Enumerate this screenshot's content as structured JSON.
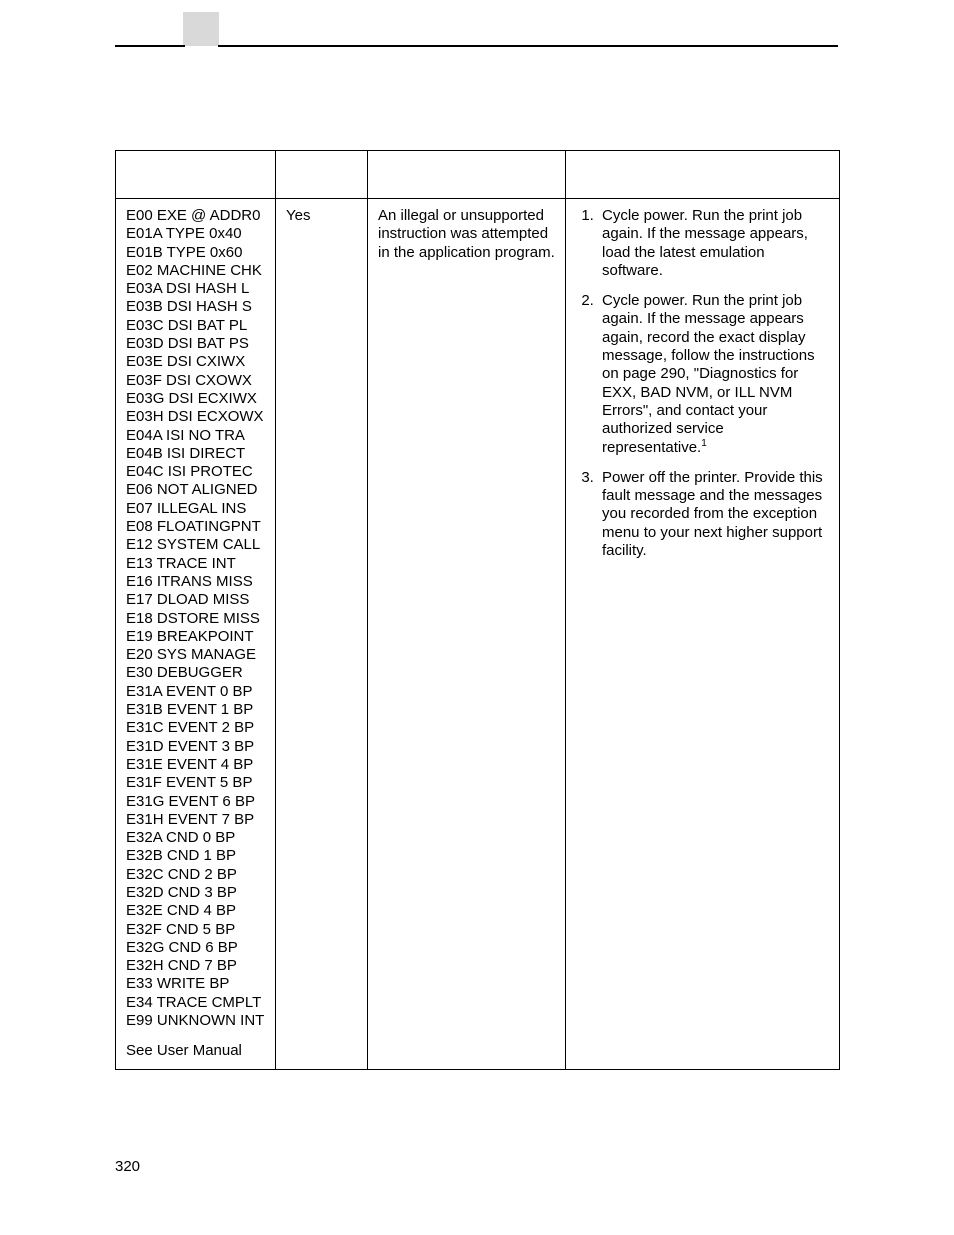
{
  "page_number": "320",
  "col2_value": "Yes",
  "col3_value": "An illegal or unsupported instruction was attempted in the application program.",
  "error_codes": [
    "E00 EXE @ ADDR0",
    "E01A TYPE 0x40",
    "E01B TYPE 0x60",
    "E02 MACHINE CHK",
    "E03A DSI HASH L",
    "E03B DSI HASH S",
    "E03C DSI BAT PL",
    "E03D DSI BAT PS",
    "E03E DSI CXIWX",
    "E03F DSI CXOWX",
    "E03G DSI ECXIWX",
    "E03H DSI ECXOWX",
    "E04A ISI NO TRA",
    "E04B ISI DIRECT",
    "E04C ISI PROTEC",
    "E06 NOT ALIGNED",
    "E07 ILLEGAL INS",
    "E08 FLOATINGPNT",
    "E12 SYSTEM CALL",
    "E13 TRACE INT",
    "E16 ITRANS MISS",
    "E17 DLOAD MISS",
    "E18 DSTORE MISS",
    "E19 BREAKPOINT",
    "E20 SYS MANAGE",
    "E30 DEBUGGER",
    "E31A EVENT 0 BP",
    "E31B EVENT 1 BP",
    "E31C EVENT 2 BP",
    "E31D EVENT 3 BP",
    "E31E EVENT 4 BP",
    "E31F EVENT 5 BP",
    "E31G EVENT 6 BP",
    "E31H EVENT 7 BP",
    "E32A CND 0 BP",
    "E32B CND 1 BP",
    "E32C CND 2 BP",
    "E32D CND 3 BP",
    "E32E CND 4 BP",
    "E32F CND 5 BP",
    "E32G CND 6 BP",
    "E32H CND 7 BP",
    "E33 WRITE BP",
    "E34 TRACE CMPLT",
    "E99 UNKNOWN INT"
  ],
  "col1_footer": "See User Manual",
  "steps": {
    "s1": "Cycle power. Run the print job again. If the message appears, load the latest emulation software.",
    "s2a": "Cycle power. Run the print job again. If the message appears again, record the exact display message, follow the instructions on page 290, \"Diagnostics for EXX, BAD NVM, or ILL NVM Errors\", and contact your authorized service representative.",
    "s2sup": "1",
    "s3": "Power off the printer. Provide this fault message and the messages you recorded from the exception menu to your next higher support facility."
  }
}
